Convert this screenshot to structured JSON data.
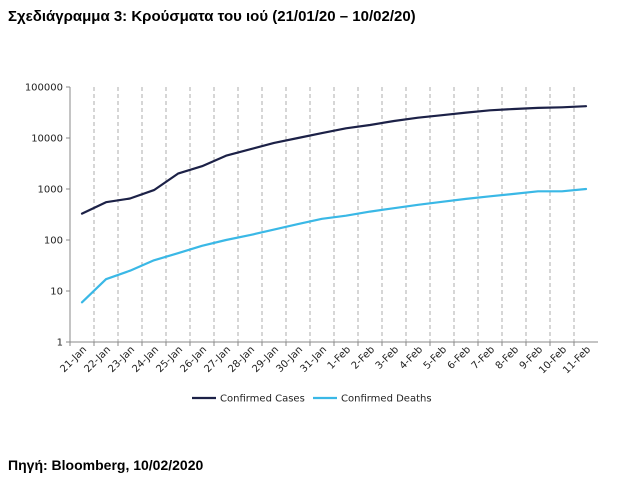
{
  "title": "Σχεδιάγραμμα 3: Κρούσματα του ιού (21/01/20 – 10/02/20)",
  "source": "Πηγή: Bloomberg, 10/02/2020",
  "colors": {
    "confirmed_cases": "#1c2147",
    "confirmed_deaths": "#3ab8e6",
    "grid": "#9a9a9a",
    "axis": "#888888"
  },
  "chart_data": {
    "type": "line",
    "title": "",
    "xlabel": "",
    "ylabel": "",
    "yscale": "log",
    "ylim": [
      1,
      100000
    ],
    "y_ticks": [
      "1",
      "10",
      "100",
      "1000",
      "10000",
      "100000"
    ],
    "y_tick_values": [
      1,
      10,
      100,
      1000,
      10000,
      100000
    ],
    "grid": "vertical dashed",
    "legend_position": "bottom",
    "categories": [
      "21-Jan",
      "22-Jan",
      "23-Jan",
      "24-Jan",
      "25-Jan",
      "26-Jan",
      "27-Jan",
      "28-Jan",
      "29-Jan",
      "30-Jan",
      "31-Jan",
      "1-Feb",
      "2-Feb",
      "3-Feb",
      "4-Feb",
      "5-Feb",
      "6-Feb",
      "7-Feb",
      "8-Feb",
      "9-Feb",
      "10-Feb",
      "11-Feb"
    ],
    "series": [
      {
        "name": "Confirmed Cases",
        "values": [
          330,
          550,
          650,
          950,
          2000,
          2800,
          4500,
          6000,
          8000,
          10000,
          12500,
          15500,
          18000,
          21500,
          25000,
          28000,
          31500,
          35000,
          37000,
          39000,
          40000,
          42000
        ]
      },
      {
        "name": "Confirmed Deaths",
        "values": [
          6,
          17,
          25,
          40,
          55,
          77,
          100,
          125,
          160,
          205,
          260,
          300,
          360,
          420,
          490,
          560,
          640,
          720,
          800,
          900,
          900,
          1000
        ]
      }
    ]
  }
}
